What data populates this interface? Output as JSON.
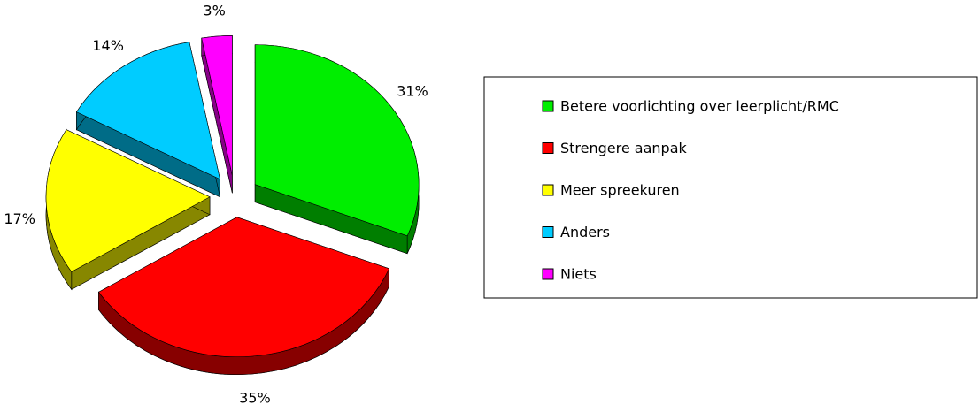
{
  "chart_data": {
    "type": "pie",
    "categories": [
      "Betere voorlichting over leerplicht/RMC",
      "Strengere aanpak",
      "Meer spreekuren",
      "Anders",
      "Niets"
    ],
    "values": [
      31,
      35,
      17,
      14,
      3
    ],
    "value_labels": [
      "31%",
      "35%",
      "17%",
      "14%",
      "3%"
    ],
    "colors": [
      "#00ee00",
      "#ff0000",
      "#ffff00",
      "#00ccff",
      "#ff00ff"
    ],
    "legend": "right"
  }
}
